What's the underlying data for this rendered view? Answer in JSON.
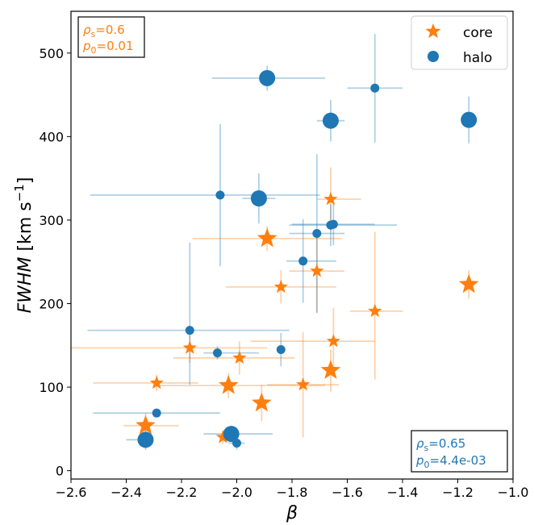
{
  "chart_data": {
    "type": "scatter",
    "title": "",
    "xlabel": "β",
    "ylabel": "FWHM [km s⁻¹]",
    "xlim": [
      -2.6,
      -1.0
    ],
    "ylim": [
      -10,
      550
    ],
    "xticks": [
      "−2.6",
      "−2.4",
      "−2.2",
      "−2.0",
      "−1.8",
      "−1.6",
      "−1.4",
      "−1.2",
      "−1.0"
    ],
    "xtick_values": [
      -2.6,
      -2.4,
      -2.2,
      -2.0,
      -1.8,
      -1.6,
      -1.4,
      -1.2,
      -1.0
    ],
    "yticks": [
      "0",
      "100",
      "200",
      "300",
      "400",
      "500"
    ],
    "ytick_values": [
      0,
      100,
      200,
      300,
      400,
      500
    ],
    "grid": false,
    "legend_position": "top-right",
    "colors": {
      "core": "#ff7f0e",
      "halo": "#1f77b4"
    },
    "series": [
      {
        "name": "core",
        "marker": "star",
        "color": "#ff7f0e",
        "points": [
          {
            "x": -1.89,
            "y": 278,
            "size": "large",
            "xerr": [
              0.27,
              0.27
            ],
            "yerr": [
              15,
              15
            ]
          },
          {
            "x": -1.16,
            "y": 223,
            "size": "large",
            "xerr": [
              0.0,
              0.0
            ],
            "yerr": [
              17,
              17
            ]
          },
          {
            "x": -1.66,
            "y": 325,
            "size": "medium",
            "xerr": [
              0.05,
              0.11
            ],
            "yerr": [
              38,
              38
            ]
          },
          {
            "x": -1.84,
            "y": 220,
            "size": "medium",
            "xerr": [
              0.2,
              0.2
            ],
            "yerr": [
              20,
              20
            ]
          },
          {
            "x": -1.71,
            "y": 239,
            "size": "medium",
            "xerr": [
              0.1,
              0.1
            ],
            "yerr": [
              50,
              50
            ]
          },
          {
            "x": -1.5,
            "y": 191,
            "size": "medium",
            "xerr": [
              0.09,
              0.1
            ],
            "yerr": [
              82,
              95
            ]
          },
          {
            "x": -1.65,
            "y": 155,
            "size": "medium",
            "xerr": [
              0.3,
              0.15
            ],
            "yerr": [
              40,
              40
            ]
          },
          {
            "x": -2.17,
            "y": 147,
            "size": "medium",
            "xerr": [
              0.43,
              0.28
            ],
            "yerr": [
              18,
              18
            ]
          },
          {
            "x": -1.99,
            "y": 135,
            "size": "medium",
            "xerr": [
              0.24,
              0.2
            ],
            "yerr": [
              20,
              20
            ]
          },
          {
            "x": -1.66,
            "y": 120,
            "size": "large",
            "xerr": [
              0.0,
              0.0
            ],
            "yerr": [
              25,
              25
            ]
          },
          {
            "x": -2.29,
            "y": 105,
            "size": "medium",
            "xerr": [
              0.23,
              0.15
            ],
            "yerr": [
              10,
              10
            ]
          },
          {
            "x": -2.03,
            "y": 102,
            "size": "large",
            "xerr": [
              0.25,
              0.35
            ],
            "yerr": [
              15,
              15
            ]
          },
          {
            "x": -1.76,
            "y": 103,
            "size": "medium",
            "xerr": [
              0.13,
              0.13
            ],
            "yerr": [
              63,
              63
            ]
          },
          {
            "x": -1.91,
            "y": 81,
            "size": "large",
            "xerr": [
              0.0,
              0.0
            ],
            "yerr": [
              22,
              22
            ]
          },
          {
            "x": -2.33,
            "y": 54,
            "size": "large",
            "xerr": [
              0.08,
              0.12
            ],
            "yerr": [
              15,
              15
            ]
          },
          {
            "x": -2.05,
            "y": 40,
            "size": "medium",
            "xerr": [
              0.0,
              0.0
            ],
            "yerr": [
              8,
              8
            ]
          }
        ]
      },
      {
        "name": "halo",
        "marker": "circle",
        "color": "#1f77b4",
        "points": [
          {
            "x": -1.89,
            "y": 470,
            "size": "large",
            "xerr": [
              0.2,
              0.21
            ],
            "yerr": [
              15,
              15
            ]
          },
          {
            "x": -1.5,
            "y": 458,
            "size": "small",
            "xerr": [
              0.1,
              0.1
            ],
            "yerr": [
              65,
              65
            ]
          },
          {
            "x": -1.66,
            "y": 419,
            "size": "large",
            "xerr": [
              0.05,
              0.05
            ],
            "yerr": [
              25,
              25
            ]
          },
          {
            "x": -1.16,
            "y": 420,
            "size": "large",
            "xerr": [
              0.0,
              0.0
            ],
            "yerr": [
              28,
              28
            ]
          },
          {
            "x": -2.06,
            "y": 330,
            "size": "small",
            "xerr": [
              0.47,
              0.36
            ],
            "yerr": [
              85,
              85
            ]
          },
          {
            "x": -1.92,
            "y": 326,
            "size": "large",
            "xerr": [
              0.06,
              0.06
            ],
            "yerr": [
              30,
              30
            ]
          },
          {
            "x": -1.66,
            "y": 294,
            "size": "small",
            "xerr": [
              0.15,
              0.24
            ],
            "yerr": [
              25,
              25
            ]
          },
          {
            "x": -1.65,
            "y": 295,
            "size": "small",
            "xerr": [
              0.15,
              0.15
            ],
            "yerr": [
              25,
              25
            ]
          },
          {
            "x": -1.71,
            "y": 284,
            "size": "small",
            "xerr": [
              0.1,
              0.1
            ],
            "yerr": [
              95,
              95
            ]
          },
          {
            "x": -1.76,
            "y": 251,
            "size": "small",
            "xerr": [
              0.06,
              0.12
            ],
            "yerr": [
              50,
              50
            ]
          },
          {
            "x": -2.17,
            "y": 168,
            "size": "small",
            "xerr": [
              0.37,
              0.36
            ],
            "yerr": [
              65,
              105
            ]
          },
          {
            "x": -2.07,
            "y": 141,
            "size": "small",
            "xerr": [
              0.05,
              0.15
            ],
            "yerr": [
              8,
              8
            ]
          },
          {
            "x": -1.84,
            "y": 145,
            "size": "small",
            "xerr": [
              0.01,
              0.01
            ],
            "yerr": [
              20,
              20
            ]
          },
          {
            "x": -2.29,
            "y": 69,
            "size": "small",
            "xerr": [
              0.23,
              0.23
            ],
            "yerr": [
              5,
              5
            ]
          },
          {
            "x": -2.02,
            "y": 44,
            "size": "large",
            "xerr": [
              0.1,
              0.15
            ],
            "yerr": [
              10,
              10
            ]
          },
          {
            "x": -2.33,
            "y": 37,
            "size": "large",
            "xerr": [
              0.07,
              0.0
            ],
            "yerr": [
              12,
              12
            ]
          },
          {
            "x": -2.0,
            "y": 33,
            "size": "small",
            "xerr": [
              0.03,
              0.03
            ],
            "yerr": [
              8,
              8
            ]
          }
        ]
      }
    ],
    "annotations": {
      "core_stats": {
        "rho": "ρ",
        "rho_sub": "s",
        "rho_val": "=0.6",
        "p": "p",
        "p_sub": "0",
        "p_val": "=0.01"
      },
      "halo_stats": {
        "rho": "ρ",
        "rho_sub": "s",
        "rho_val": "=0.65",
        "p": "p",
        "p_sub": "0",
        "p_val": "=4.4e-03"
      }
    }
  }
}
